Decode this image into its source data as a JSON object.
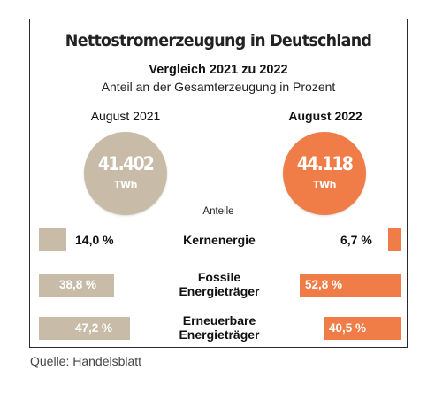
{
  "header": {
    "title": "Nettostromerzeugung in Deutschland",
    "subtitle": "Vergleich 2021 zu 2022",
    "subtitle2": "Anteil an der Gesamterzeugung in Prozent"
  },
  "periods": {
    "left": {
      "label": "August 2021",
      "total": "41.402",
      "unit": "TWh",
      "color": "#c8bba7"
    },
    "right": {
      "label": "August 2022",
      "total": "44.118",
      "unit": "TWh",
      "color": "#f07c47"
    }
  },
  "shares_label": "Anteile",
  "rows": [
    {
      "category": "Kernenergie",
      "left_label": "14,0 %",
      "right_label": "6,7 %"
    },
    {
      "category": "Fossile Energieträger",
      "left_label": "38,8 %",
      "right_label": "52,8 %"
    },
    {
      "category": "Erneuerbare Energieträger",
      "left_label": "47,2 %",
      "right_label": "40,5 %"
    }
  ],
  "source": "Quelle: Handelsblatt",
  "chart_data": {
    "type": "bar",
    "title": "Nettostromerzeugung in Deutschland",
    "subtitle": "Vergleich 2021 zu 2022",
    "ylabel": "Anteil an der Gesamterzeugung in Prozent",
    "categories": [
      "Kernenergie",
      "Fossile Energieträger",
      "Erneuerbare Energieträger"
    ],
    "series": [
      {
        "name": "August 2021",
        "values": [
          14.0,
          38.8,
          47.2
        ],
        "total": 41402,
        "color": "#c8bba7"
      },
      {
        "name": "August 2022",
        "values": [
          6.7,
          52.8,
          40.5
        ],
        "total": 44118,
        "color": "#f07c47"
      }
    ],
    "unit": "TWh",
    "ylim": [
      0,
      100
    ]
  }
}
